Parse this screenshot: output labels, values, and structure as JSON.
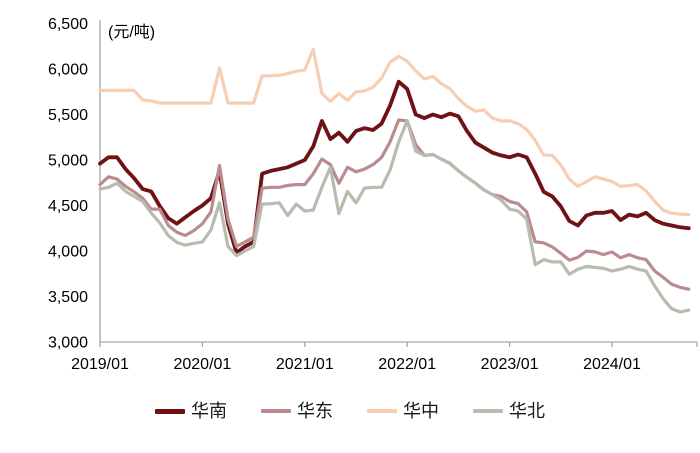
{
  "chart_data": {
    "type": "line",
    "title": "",
    "unit_label": "(元/吨)",
    "xlabel": "",
    "ylabel": "元/吨",
    "ylim": [
      3000,
      6500
    ],
    "grid": false,
    "legend_position": "bottom",
    "x_start": "2019/01",
    "x_end": "2024/10",
    "x_tick_labels": [
      "2019/01",
      "2020/01",
      "2021/01",
      "2022/01",
      "2023/01",
      "2024/01"
    ],
    "x_tick_month_index": [
      0,
      12,
      24,
      36,
      48,
      60
    ],
    "y_tick_values": [
      6500,
      6000,
      5500,
      5000,
      4500,
      4000,
      3500,
      3000
    ],
    "y_tick_labels": [
      "6,500",
      "6,000",
      "5,500",
      "5,000",
      "4,500",
      "4,000",
      "3,500",
      "3,000"
    ],
    "axis_color": "#a6a6a6",
    "text_color": "#000000",
    "series": [
      {
        "name": "华南",
        "color": "#6E1215",
        "line_width": 3.8,
        "values": [
          4960,
          5030,
          5030,
          4900,
          4800,
          4680,
          4655,
          4495,
          4360,
          4300,
          4370,
          4440,
          4500,
          4580,
          4880,
          4300,
          3980,
          4050,
          4100,
          4850,
          4880,
          4900,
          4920,
          4960,
          5000,
          5150,
          5430,
          5230,
          5300,
          5200,
          5320,
          5350,
          5330,
          5400,
          5600,
          5860,
          5780,
          5500,
          5460,
          5500,
          5470,
          5510,
          5480,
          5320,
          5190,
          5135,
          5080,
          5050,
          5030,
          5060,
          5030,
          4850,
          4650,
          4600,
          4490,
          4330,
          4280,
          4390,
          4420,
          4420,
          4440,
          4340,
          4400,
          4380,
          4420,
          4340,
          4300,
          4280,
          4260,
          4250
        ]
      },
      {
        "name": "华东",
        "color": "#BA8C90",
        "line_width": 3.2,
        "values": [
          4730,
          4815,
          4790,
          4710,
          4650,
          4580,
          4460,
          4460,
          4280,
          4205,
          4170,
          4225,
          4300,
          4430,
          4940,
          4350,
          4050,
          4100,
          4150,
          4690,
          4700,
          4700,
          4720,
          4730,
          4730,
          4850,
          5010,
          4950,
          4745,
          4920,
          4870,
          4900,
          4950,
          5030,
          5200,
          5440,
          5430,
          5170,
          5050,
          5060,
          5010,
          4965,
          4880,
          4810,
          4745,
          4670,
          4620,
          4600,
          4545,
          4520,
          4430,
          4100,
          4090,
          4045,
          3975,
          3900,
          3930,
          4000,
          3990,
          3960,
          3990,
          3925,
          3960,
          3925,
          3905,
          3780,
          3710,
          3635,
          3600,
          3580
        ]
      },
      {
        "name": "华中",
        "color": "#F6CEB3",
        "line_width": 3.2,
        "values": [
          5765,
          5765,
          5765,
          5765,
          5765,
          5660,
          5650,
          5625,
          5625,
          5625,
          5625,
          5625,
          5625,
          5625,
          6010,
          5625,
          5625,
          5625,
          5625,
          5925,
          5925,
          5930,
          5950,
          5975,
          5990,
          6215,
          5730,
          5645,
          5730,
          5655,
          5750,
          5760,
          5800,
          5900,
          6075,
          6140,
          6085,
          5980,
          5890,
          5920,
          5840,
          5785,
          5675,
          5590,
          5535,
          5550,
          5460,
          5430,
          5430,
          5400,
          5335,
          5215,
          5055,
          5050,
          4945,
          4790,
          4710,
          4760,
          4815,
          4790,
          4765,
          4710,
          4720,
          4730,
          4660,
          4545,
          4450,
          4415,
          4405,
          4400
        ]
      },
      {
        "name": "华北",
        "color": "#B8BBAD",
        "line_width": 3.2,
        "values": [
          4680,
          4700,
          4745,
          4655,
          4600,
          4545,
          4420,
          4310,
          4170,
          4095,
          4065,
          4085,
          4100,
          4230,
          4530,
          4050,
          3950,
          4000,
          4050,
          4515,
          4520,
          4530,
          4390,
          4515,
          4440,
          4450,
          4700,
          4920,
          4410,
          4655,
          4530,
          4690,
          4700,
          4700,
          4890,
          5200,
          5430,
          5100,
          5050,
          5060,
          5010,
          4960,
          4880,
          4810,
          4745,
          4670,
          4620,
          4560,
          4460,
          4440,
          4350,
          3850,
          3905,
          3880,
          3880,
          3745,
          3800,
          3830,
          3820,
          3810,
          3780,
          3800,
          3830,
          3800,
          3780,
          3615,
          3475,
          3365,
          3330,
          3350
        ]
      }
    ]
  }
}
